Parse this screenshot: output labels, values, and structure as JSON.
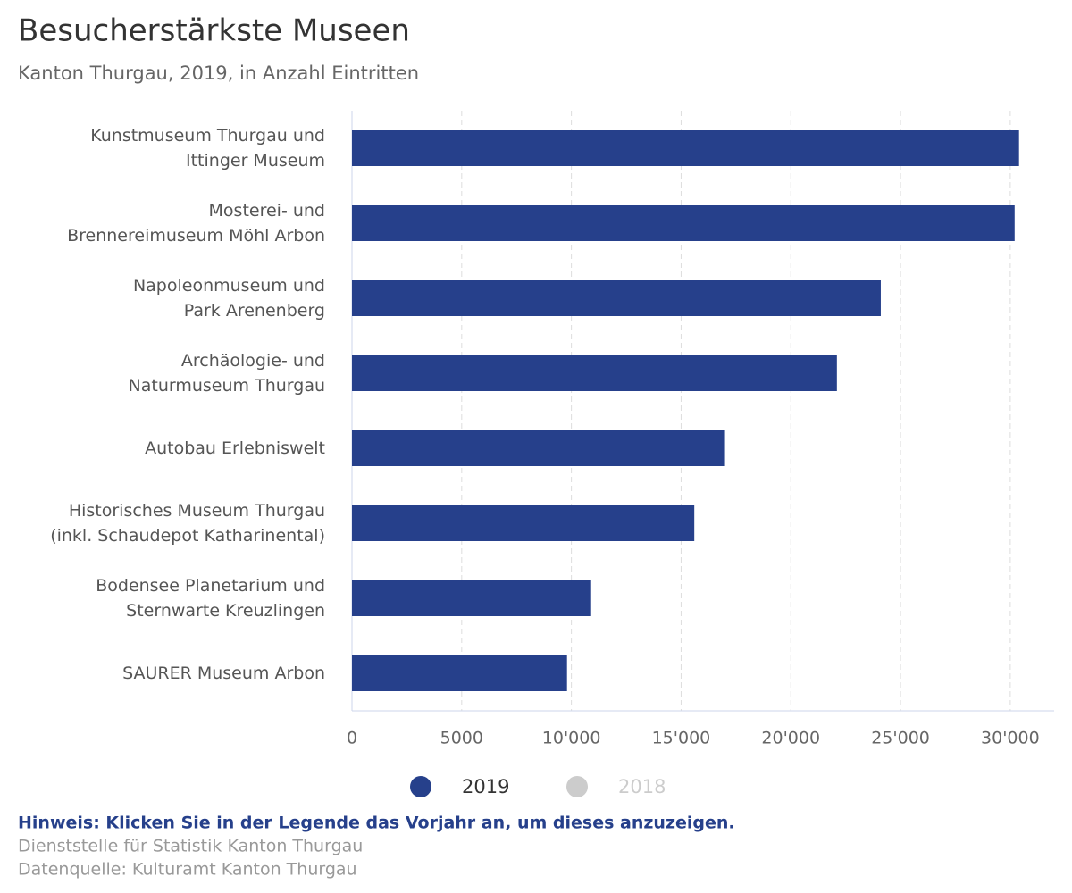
{
  "chart_data": {
    "type": "bar",
    "orientation": "horizontal",
    "title": "Besucherstärkste Museen",
    "subtitle": "Kanton Thurgau, 2019, in Anzahl Eintritten",
    "categories": [
      [
        "Kunstmuseum Thurgau und",
        "Ittinger Museum"
      ],
      [
        "Mosterei- und",
        "Brennereimuseum Möhl Arbon"
      ],
      [
        "Napoleonmuseum und",
        "Park Arenenberg"
      ],
      [
        "Archäologie- und",
        "Naturmuseum Thurgau"
      ],
      [
        "Autobau Erlebniswelt"
      ],
      [
        "Historisches Museum Thurgau",
        "(inkl. Schaudepot Katharinental)"
      ],
      [
        "Bodensee Planetarium und",
        "Sternwarte Kreuzlingen"
      ],
      [
        "SAURER Museum Arbon"
      ]
    ],
    "series": [
      {
        "name": "2019",
        "color": "#26408b",
        "values": [
          30400,
          30200,
          24100,
          22100,
          17000,
          15600,
          10900,
          9800
        ]
      }
    ],
    "legend_inactive": [
      {
        "name": "2018",
        "color": "#cccccc"
      }
    ],
    "xlim": [
      0,
      32000
    ],
    "xticks": [
      0,
      5000,
      {
        "value": 10000,
        "label": "10'000"
      },
      {
        "value": 15000,
        "label": "15'000"
      },
      {
        "value": 20000,
        "label": "20'000"
      },
      {
        "value": 25000,
        "label": "25'000"
      },
      {
        "value": 30000,
        "label": "30'000"
      }
    ],
    "grid": true,
    "note": "Hinweis: Klicken Sie in der Legende das Vorjahr an, um dieses anzuzeigen.",
    "source": [
      "Dienststelle für Statistik Kanton Thurgau",
      "Datenquelle: Kulturamt Kanton Thurgau"
    ]
  }
}
